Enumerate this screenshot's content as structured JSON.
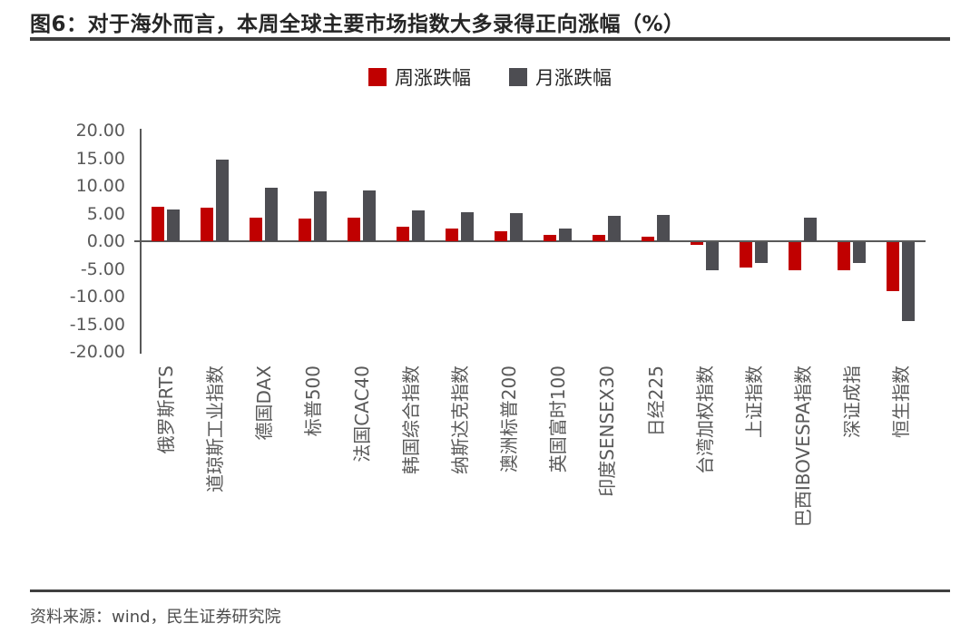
{
  "title": "图6：对于海外而言，本周全球主要市场指数大多录得正向涨幅（%）",
  "source": "资料来源：wind，民生证券研究院",
  "colors": {
    "week_series": "#C00000",
    "month_series": "#4D4D52",
    "axis": "#595959",
    "title_text": "#262626",
    "rule": "#404040",
    "tick_text": "#595959"
  },
  "chart_data": {
    "type": "bar",
    "title": "图6：对于海外而言，本周全球主要市场指数大多录得正向涨幅（%）",
    "categories": [
      "俄罗斯RTS",
      "道琼斯工业指数",
      "德国DAX",
      "标普500",
      "法国CAC40",
      "韩国综合指数",
      "纳斯达克指数",
      "澳洲标普200",
      "英国富时100",
      "印度SENSEX30",
      "日经225",
      "台湾加权指数",
      "上证指数",
      "巴西IBOVESPA指数",
      "深证成指",
      "恒生指数"
    ],
    "series": [
      {
        "name": "周涨跌幅",
        "color": "#C00000",
        "values": [
          6.2,
          6.0,
          4.2,
          4.1,
          4.2,
          2.6,
          2.3,
          1.8,
          1.2,
          1.2,
          0.9,
          -0.5,
          -4.6,
          -5.0,
          -5.0,
          -8.8
        ]
      },
      {
        "name": "月涨跌幅",
        "color": "#4D4D52",
        "values": [
          5.7,
          14.7,
          9.6,
          9.0,
          9.2,
          5.5,
          5.2,
          5.0,
          2.3,
          4.6,
          4.8,
          -5.0,
          -3.8,
          4.2,
          -3.7,
          -14.3
        ]
      }
    ],
    "xlabel": "",
    "ylabel": "",
    "ylim": [
      -20,
      20
    ],
    "ytick_step": 5,
    "ytick_labels": [
      "20.00",
      "15.00",
      "10.00",
      "5.00",
      "0.00",
      "-5.00",
      "-10.00",
      "-15.00",
      "-20.00"
    ],
    "legend_position": "top",
    "grid": false,
    "x_label_rotation": -90
  }
}
